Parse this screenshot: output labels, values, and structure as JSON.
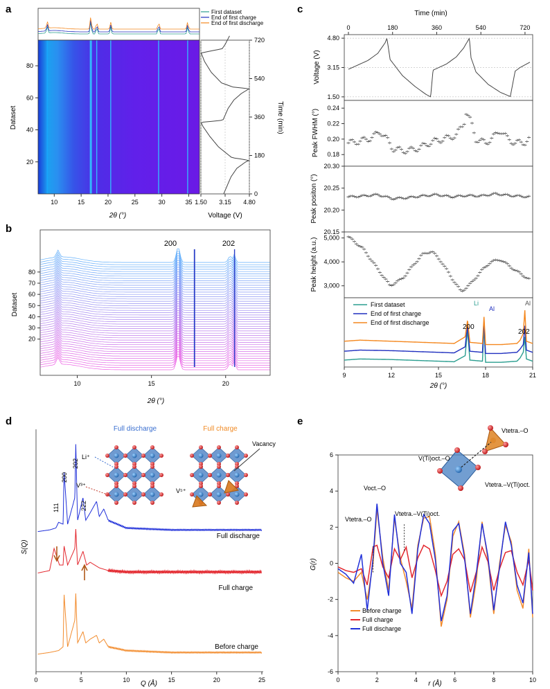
{
  "panels": {
    "a": {
      "letter": "a",
      "y_label": "Dataset",
      "x_label": "2θ (°)",
      "volt_label": "Voltage (V)",
      "time_label": "Time (min)",
      "x_ticks": [
        "10",
        "15",
        "20",
        "25",
        "30",
        "35"
      ],
      "y_ticks": [
        "20",
        "40",
        "60",
        "80"
      ],
      "volt_ticks": [
        "1.50",
        "3.15",
        "4.80"
      ],
      "time_ticks": [
        "0",
        "180",
        "360",
        "540",
        "720"
      ],
      "legend": [
        "First dataset",
        "End of first charge",
        "End of first discharge"
      ]
    },
    "b": {
      "letter": "b",
      "y_label": "Dataset",
      "x_label": "2θ (°)",
      "x_ticks": [
        "10",
        "15",
        "20"
      ],
      "y_ticks": [
        "20",
        "30",
        "40",
        "50",
        "60",
        "70",
        "80"
      ],
      "peak_labels": [
        "200",
        "202"
      ]
    },
    "c": {
      "letter": "c",
      "time_label": "Time (min)",
      "time_ticks": [
        "0",
        "180",
        "360",
        "540",
        "720"
      ],
      "voltage_label": "Voltage (V)",
      "voltage_ticks": [
        "4.80",
        "3.15",
        "1.50"
      ],
      "fwhm_label": "Peak FWHM (°)",
      "fwhm_ticks": [
        "0.24",
        "0.22",
        "0.20",
        "0.18"
      ],
      "pos_label": "Peak positon (°)",
      "pos_ticks": [
        "20.30",
        "20.25",
        "20.20",
        "20.15"
      ],
      "height_label": "Peak height (a.u.)",
      "height_ticks": [
        "5,000",
        "4,000",
        "3,000"
      ],
      "x_label": "2θ (°)",
      "x_ticks": [
        "9",
        "12",
        "15",
        "18",
        "21"
      ],
      "legend": [
        "First dataset",
        "End of first charge",
        "End of first discharge"
      ],
      "annotations": [
        "Li",
        "Al",
        "Al",
        "200",
        "202"
      ]
    },
    "d": {
      "letter": "d",
      "y_label": "S(Q)",
      "x_label": "Q (Å)",
      "x_ticks": [
        "0",
        "5",
        "10",
        "15",
        "20",
        "25"
      ],
      "curve_labels": [
        "Full discharge",
        "Full charge",
        "Before charge"
      ],
      "peak_labels": [
        "111",
        "200",
        "202",
        "222"
      ],
      "struct_titles": [
        "Full discharge",
        "Full charge"
      ],
      "ion_labels": [
        "Li⁺",
        "V³⁺",
        "V⁵⁺",
        "Vacancy"
      ]
    },
    "e": {
      "letter": "e",
      "y_label": "G(r)",
      "x_label": "r (Å)",
      "x_ticks": [
        "0",
        "2",
        "4",
        "6",
        "8",
        "10"
      ],
      "y_ticks": [
        "6",
        "4",
        "2",
        "0",
        "-2",
        "-4",
        "-6"
      ],
      "legend": [
        "Before charge",
        "Full charge",
        "Full discharge"
      ],
      "annotations": [
        "V(Ti)oct.–O",
        "Vtetra.–O",
        "Vtetra.–V(Ti)oct.",
        "Voct.–O",
        "Vtetra.–O",
        "Vtetra.–V(Ti)oct."
      ]
    }
  },
  "colors": {
    "first": "#2a9d8f",
    "charge": "#1f2fbf",
    "discharge": "#f4871e",
    "red": "#e3262d",
    "blue_line": "#1f2fd9",
    "orange_line": "#f28b2c",
    "grey": "#666666"
  },
  "chart_data": [
    {
      "panel": "a",
      "type": "heatmap",
      "title": "",
      "xlabel": "2θ (°)",
      "ylabel": "Dataset",
      "xlim": [
        7,
        37
      ],
      "ylim": [
        0,
        96
      ],
      "peaks_2theta": [
        8.7,
        16.8,
        17.9,
        20.5,
        29.4,
        34.8
      ],
      "side_plot": {
        "xlabel": "Voltage (V)",
        "ylabel": "Time (min)",
        "xlim": [
          1.5,
          4.8
        ],
        "ylim": [
          0,
          720
        ]
      }
    },
    {
      "panel": "b",
      "type": "line",
      "title": "",
      "xlabel": "2θ (°)",
      "ylabel": "Dataset",
      "xlim": [
        7.5,
        23
      ],
      "series_count": 96,
      "peaks_2theta": [
        8.7,
        16.8,
        17.9,
        20.3,
        20.6
      ]
    },
    {
      "panel": "c-voltage",
      "type": "line",
      "xlabel": "Time (min)",
      "ylabel": "Voltage (V)",
      "xlim": [
        0,
        740
      ],
      "ylim": [
        1.3,
        5.0
      ],
      "series": [
        {
          "name": "",
          "x": [
            0,
            40,
            80,
            120,
            150,
            157,
            170,
            220,
            270,
            315,
            335,
            345,
            400,
            440,
            470,
            493,
            500,
            520,
            570,
            620,
            660,
            680,
            700,
            740
          ],
          "y": [
            3.05,
            3.3,
            3.55,
            3.95,
            4.55,
            4.8,
            3.6,
            2.7,
            2.1,
            1.65,
            1.5,
            3.0,
            3.35,
            3.75,
            4.25,
            4.8,
            3.7,
            2.9,
            2.2,
            1.75,
            1.52,
            2.95,
            3.15,
            3.45
          ]
        }
      ]
    },
    {
      "panel": "c-fwhm",
      "type": "scatter",
      "xlabel": "Time (min)",
      "ylabel": "Peak FWHM (°)",
      "xlim": [
        0,
        740
      ],
      "ylim": [
        0.165,
        0.25
      ],
      "series": [
        {
          "name": "",
          "x": [
            0,
            40,
            80,
            110,
            130,
            150,
            180,
            220,
            260,
            300,
            330,
            360,
            400,
            440,
            470,
            480,
            500,
            520,
            560,
            600,
            620,
            650,
            680,
            720,
            740
          ],
          "y": [
            0.195,
            0.197,
            0.2,
            0.205,
            0.21,
            0.203,
            0.188,
            0.185,
            0.186,
            0.19,
            0.195,
            0.198,
            0.201,
            0.205,
            0.22,
            0.235,
            0.222,
            0.2,
            0.195,
            0.205,
            0.212,
            0.2,
            0.195,
            0.196,
            0.2
          ]
        }
      ]
    },
    {
      "panel": "c-position",
      "type": "scatter",
      "xlabel": "Time (min)",
      "ylabel": "Peak positon (°)",
      "xlim": [
        0,
        740
      ],
      "ylim": [
        20.15,
        20.3
      ],
      "series": [
        {
          "name": "",
          "x": [
            0,
            60,
            120,
            180,
            240,
            300,
            360,
            420,
            480,
            540,
            600,
            660,
            740
          ],
          "y": [
            20.23,
            20.232,
            20.235,
            20.226,
            20.228,
            20.232,
            20.235,
            20.23,
            20.233,
            20.232,
            20.237,
            20.233,
            20.23
          ]
        }
      ]
    },
    {
      "panel": "c-height",
      "type": "scatter",
      "xlabel": "Time (min)",
      "ylabel": "Peak height (a.u.)",
      "xlim": [
        0,
        740
      ],
      "ylim": [
        2500,
        5250
      ],
      "series": [
        {
          "name": "",
          "x": [
            0,
            60,
            120,
            170,
            220,
            260,
            300,
            340,
            380,
            420,
            460,
            500,
            540,
            580,
            620,
            680,
            740
          ],
          "y": [
            5050,
            4550,
            3700,
            3000,
            3300,
            3800,
            4300,
            4450,
            4000,
            3350,
            2750,
            3100,
            3600,
            4000,
            4100,
            3650,
            3250
          ]
        }
      ]
    },
    {
      "panel": "c-patterns",
      "type": "line",
      "xlabel": "2θ (°)",
      "ylabel": "",
      "xlim": [
        9,
        21
      ],
      "series": [
        {
          "name": "First dataset",
          "x": [
            9,
            10,
            12,
            14,
            16,
            16.7,
            16.85,
            17,
            17.8,
            17.9,
            18,
            19,
            20,
            20.2,
            20.4,
            20.5,
            20.6,
            21
          ],
          "y": [
            0.5,
            0.6,
            0.55,
            0.45,
            0.35,
            0.9,
            3.2,
            0.5,
            0.4,
            3.5,
            0.3,
            0.3,
            0.4,
            0.7,
            1.2,
            2.6,
            0.6,
            0.4
          ]
        },
        {
          "name": "End of first charge",
          "x": [
            9,
            10,
            12,
            14,
            16,
            16.7,
            16.85,
            17,
            17.8,
            17.9,
            18,
            19,
            20,
            20.2,
            20.4,
            20.5,
            20.6,
            21
          ],
          "y": [
            1.3,
            1.4,
            1.35,
            1.25,
            1.15,
            1.7,
            3.6,
            1.3,
            1.2,
            4.0,
            1.1,
            1.1,
            1.2,
            1.5,
            1.9,
            3.6,
            1.4,
            1.2
          ]
        },
        {
          "name": "End of first discharge",
          "x": [
            9,
            10,
            12,
            14,
            16,
            16.7,
            16.85,
            17,
            17.8,
            17.9,
            18,
            19,
            20,
            20.2,
            20.4,
            20.5,
            20.6,
            21
          ],
          "y": [
            2.2,
            2.3,
            2.2,
            2.1,
            2.0,
            2.6,
            4.1,
            2.1,
            2.0,
            4.4,
            1.9,
            1.9,
            2.0,
            2.3,
            2.9,
            5.0,
            2.2,
            2.0
          ]
        }
      ]
    },
    {
      "panel": "d",
      "type": "line",
      "xlabel": "Q (Å)",
      "ylabel": "S(Q)",
      "xlim": [
        0,
        25
      ],
      "series": [
        {
          "name": "Full discharge",
          "x": [
            0,
            1.5,
            2.2,
            2.5,
            3.0,
            3.1,
            3.5,
            4.3,
            4.4,
            4.6,
            5.2,
            5.5,
            6.0,
            6.7,
            7.0,
            7.5,
            8,
            10,
            15,
            20,
            25
          ],
          "y": [
            0,
            0.05,
            0.1,
            0.25,
            0.2,
            1.6,
            0.2,
            0.9,
            2.3,
            0.3,
            0.9,
            0.3,
            0.5,
            0.8,
            0.4,
            0.6,
            0.3,
            0.1,
            0.05,
            0.05,
            0.05
          ]
        },
        {
          "name": "Full charge",
          "x": [
            0,
            1.5,
            2.0,
            2.6,
            3.0,
            3.1,
            3.5,
            4.3,
            4.4,
            4.6,
            5.2,
            5.6,
            6.0,
            7,
            8,
            10,
            15,
            20,
            25
          ],
          "y": [
            0,
            0.1,
            0.9,
            0.3,
            0.3,
            1.0,
            0.3,
            0.9,
            1.6,
            0.3,
            0.8,
            0.3,
            0.4,
            0.2,
            0.1,
            0.05,
            0.05,
            0.05,
            0.05
          ]
        },
        {
          "name": "Before charge",
          "x": [
            0,
            1.5,
            2.5,
            3.0,
            3.1,
            3.5,
            4.3,
            4.4,
            4.6,
            5.2,
            5.5,
            6.0,
            6.7,
            7.0,
            7.5,
            8,
            10,
            15,
            20,
            25
          ],
          "y": [
            0,
            0.05,
            0.1,
            0.2,
            1.6,
            0.2,
            0.9,
            1.6,
            0.3,
            0.6,
            0.3,
            0.4,
            0.5,
            0.3,
            0.4,
            0.2,
            0.1,
            0.05,
            0.05,
            0.05
          ]
        }
      ]
    },
    {
      "panel": "e",
      "type": "line",
      "xlabel": "r (Å)",
      "ylabel": "G(r)",
      "xlim": [
        0,
        10
      ],
      "ylim": [
        -6,
        6
      ],
      "series": [
        {
          "name": "Before charge",
          "x": [
            0,
            0.4,
            0.8,
            1.2,
            1.5,
            1.8,
            2.0,
            2.3,
            2.6,
            2.9,
            3.2,
            3.5,
            3.8,
            4.1,
            4.4,
            4.7,
            5.0,
            5.3,
            5.6,
            5.9,
            6.2,
            6.5,
            6.8,
            7.1,
            7.4,
            7.7,
            8.0,
            8.3,
            8.6,
            8.9,
            9.2,
            9.5,
            9.8,
            10
          ],
          "y": [
            -0.5,
            -0.8,
            -1.0,
            -0.5,
            -2.0,
            0.0,
            3.0,
            0.3,
            -1.5,
            2.5,
            0.3,
            -1.0,
            -2.5,
            1.0,
            2.5,
            2.6,
            0.5,
            -3.5,
            -2.0,
            1.5,
            2.3,
            0.5,
            -3.0,
            -1.0,
            2.3,
            0.2,
            -2.8,
            0.0,
            2.1,
            1.2,
            -1.5,
            -2.5,
            0.8,
            -3.0
          ]
        },
        {
          "name": "Full charge",
          "x": [
            0,
            0.4,
            0.8,
            1.2,
            1.5,
            1.8,
            2.0,
            2.3,
            2.6,
            2.9,
            3.2,
            3.5,
            3.8,
            4.1,
            4.4,
            4.7,
            5.0,
            5.3,
            5.6,
            5.9,
            6.2,
            6.5,
            6.8,
            7.1,
            7.4,
            7.7,
            8.0,
            8.3,
            8.6,
            8.9,
            9.2,
            9.5,
            9.8,
            10
          ],
          "y": [
            -0.2,
            -0.4,
            -0.5,
            -0.3,
            -1.2,
            0.9,
            1.0,
            -0.2,
            -0.8,
            0.8,
            0.2,
            0.9,
            -0.8,
            0.3,
            1.0,
            0.8,
            -0.4,
            -1.8,
            -1.0,
            0.5,
            0.8,
            0.2,
            -1.6,
            -0.5,
            0.9,
            0.1,
            -1.5,
            -0.3,
            0.6,
            0.7,
            -0.5,
            -1.2,
            0.2,
            -1.5
          ]
        },
        {
          "name": "Full discharge",
          "x": [
            0,
            0.4,
            0.8,
            1.2,
            1.5,
            1.8,
            2.0,
            2.3,
            2.6,
            2.9,
            3.2,
            3.5,
            3.8,
            4.1,
            4.4,
            4.7,
            5.0,
            5.3,
            5.6,
            5.9,
            6.2,
            6.5,
            6.8,
            7.1,
            7.4,
            7.7,
            8.0,
            8.3,
            8.6,
            8.9,
            9.2,
            9.5,
            9.8,
            10
          ],
          "y": [
            -0.3,
            -0.6,
            -1.1,
            0.5,
            -2.6,
            0.3,
            3.3,
            0.0,
            -1.8,
            2.7,
            0.0,
            -0.5,
            -2.8,
            0.8,
            2.7,
            2.2,
            0.2,
            -3.2,
            -1.8,
            1.8,
            2.2,
            0.3,
            -2.8,
            -0.6,
            2.2,
            0.4,
            -2.6,
            -0.2,
            2.3,
            1.0,
            -1.2,
            -2.2,
            0.6,
            -2.8
          ]
        }
      ]
    }
  ]
}
